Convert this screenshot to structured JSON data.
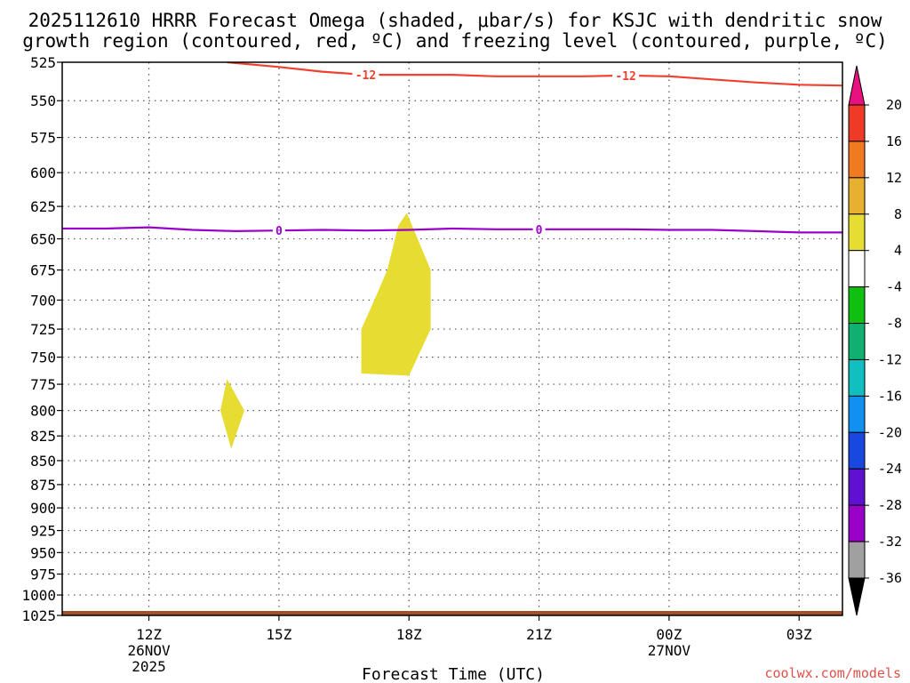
{
  "title": {
    "line1": "2025112610 HRRR Forecast Omega (shaded, μbar/s) for KSJC with dendritic snow",
    "line2": "growth region (contoured, red, ºC) and freezing level (contoured, purple, ºC)"
  },
  "credit": "coolwx.com/models",
  "chart_data": {
    "type": "heatmap",
    "title": "2025112610 HRRR Forecast Omega (shaded, μbar/s) for KSJC with dendritic snow growth region (contoured, red, ºC) and freezing level (contoured, purple, ºC)",
    "xlabel": "Forecast Time (UTC)",
    "ylabel": "",
    "x_ticks": [
      {
        "t": 12,
        "label": "12Z",
        "sub1": "26NOV",
        "sub2": "2025"
      },
      {
        "t": 15,
        "label": "15Z",
        "sub1": "",
        "sub2": ""
      },
      {
        "t": 18,
        "label": "18Z",
        "sub1": "",
        "sub2": ""
      },
      {
        "t": 21,
        "label": "21Z",
        "sub1": "",
        "sub2": ""
      },
      {
        "t": 24,
        "label": "00Z",
        "sub1": "27NOV",
        "sub2": ""
      },
      {
        "t": 27,
        "label": "03Z",
        "sub1": "",
        "sub2": ""
      }
    ],
    "xlim": [
      10,
      28
    ],
    "y_levels": [
      525,
      550,
      575,
      600,
      625,
      650,
      675,
      700,
      725,
      750,
      775,
      800,
      825,
      850,
      875,
      900,
      925,
      950,
      975,
      1000,
      1025
    ],
    "ylim": [
      525,
      1025
    ],
    "y_scale": "log-pressure",
    "grid": true,
    "omega_regions": [
      {
        "value_range": "4 to 8",
        "color": "#e6dc32",
        "points": [
          [
            13.65,
            800
          ],
          [
            13.8,
            770
          ],
          [
            14.2,
            800
          ],
          [
            13.9,
            838
          ]
        ]
      },
      {
        "value_range": "4 to 8",
        "color": "#e6dc32",
        "points": [
          [
            16.9,
            725
          ],
          [
            17.2,
            700
          ],
          [
            17.5,
            675
          ],
          [
            17.75,
            640
          ],
          [
            17.95,
            630
          ],
          [
            18.2,
            650
          ],
          [
            18.5,
            675
          ],
          [
            18.5,
            725
          ],
          [
            18.0,
            767
          ],
          [
            16.9,
            765
          ]
        ]
      }
    ],
    "contours": [
      {
        "name": "dendritic snow growth region",
        "value": -12,
        "color": "#f04030",
        "label": "-12",
        "label_at": [
          17.0,
          23.0
        ],
        "points": [
          [
            13.8,
            525
          ],
          [
            15.0,
            528
          ],
          [
            16.0,
            531
          ],
          [
            17.0,
            533
          ],
          [
            18.0,
            533
          ],
          [
            19.0,
            533
          ],
          [
            20.0,
            534
          ],
          [
            21.0,
            534
          ],
          [
            22.0,
            534
          ],
          [
            23.0,
            533.5
          ],
          [
            24.0,
            534
          ],
          [
            25.0,
            536
          ],
          [
            26.0,
            538
          ],
          [
            27.0,
            539.5
          ],
          [
            28.0,
            540
          ]
        ]
      },
      {
        "name": "freezing level",
        "value": 0,
        "color": "#9900cc",
        "label": "0",
        "label_at": [
          15.0,
          21.0
        ],
        "points": [
          [
            10.0,
            642
          ],
          [
            11.0,
            642
          ],
          [
            12.0,
            641
          ],
          [
            13.0,
            643
          ],
          [
            14.0,
            644
          ],
          [
            15.0,
            643.5
          ],
          [
            16.0,
            643
          ],
          [
            17.0,
            643.5
          ],
          [
            18.0,
            643
          ],
          [
            19.0,
            642
          ],
          [
            20.0,
            642.5
          ],
          [
            21.0,
            642.5
          ],
          [
            22.0,
            642.5
          ],
          [
            23.0,
            642.5
          ],
          [
            24.0,
            643
          ],
          [
            25.0,
            643
          ],
          [
            26.0,
            644
          ],
          [
            27.0,
            645
          ],
          [
            28.0,
            645
          ]
        ]
      }
    ],
    "terrain": {
      "color": "#a0522d",
      "pressure": 1025
    },
    "colorbar": {
      "labels": [
        "20",
        "16",
        "12",
        "8",
        "4",
        "-4",
        "-8",
        "-12",
        "-16",
        "-20",
        "-24",
        "-28",
        "-32",
        "-36"
      ],
      "top_arrow_color": "#e8117f",
      "bottom_arrow_color": "#000000",
      "colors": [
        "#f03a28",
        "#f07a20",
        "#e8b030",
        "#e6dc32",
        "#ffffff",
        "#10c010",
        "#10b070",
        "#10c0c0",
        "#1090f0",
        "#1848e0",
        "#6010d0",
        "#9a00c8",
        "#a0a0a0"
      ]
    }
  }
}
